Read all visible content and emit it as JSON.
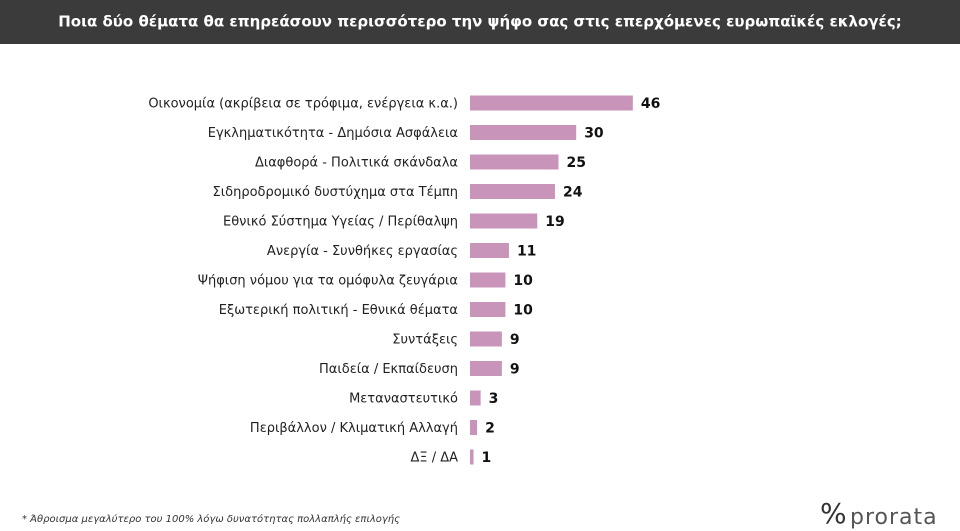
{
  "chart_data": {
    "type": "bar",
    "orientation": "horizontal",
    "title": "Ποια δύο θέματα θα επηρεάσουν περισσότερο την ψήφο σας στις επερχόμενες ευρωπαϊκές εκλογές;",
    "categories": [
      "Οικονομία (ακρίβεια σε τρόφιμα, ενέργεια κ.α.)",
      "Εγκληματικότητα - Δημόσια Ασφάλεια",
      "Διαφθορά - Πολιτικά σκάνδαλα",
      "Σιδηροδρομικό δυστύχημα στα Τέμπη",
      "Εθνικό Σύστημα Υγείας / Περίθαλψη",
      "Ανεργία - Συνθήκες εργασίας",
      "Ψήφιση νόμου για τα ομόφυλα ζευγάρια",
      "Εξωτερική πολιτική - Εθνικά θέματα",
      "Συντάξεις",
      "Παιδεία / Εκπαίδευση",
      "Μεταναστευτικό",
      "Περιβάλλον / Κλιματική Αλλαγή",
      "ΔΞ / ΔΑ"
    ],
    "values": [
      46,
      30,
      25,
      24,
      19,
      11,
      10,
      10,
      9,
      9,
      3,
      2,
      1
    ],
    "color": "#c994b9",
    "footnote": "* Άθροισμα μεγαλύτερο του 100% λόγω δυνατότητας πολλαπλής επιλογής"
  },
  "logo": {
    "symbol": "%",
    "text": "prorata"
  }
}
